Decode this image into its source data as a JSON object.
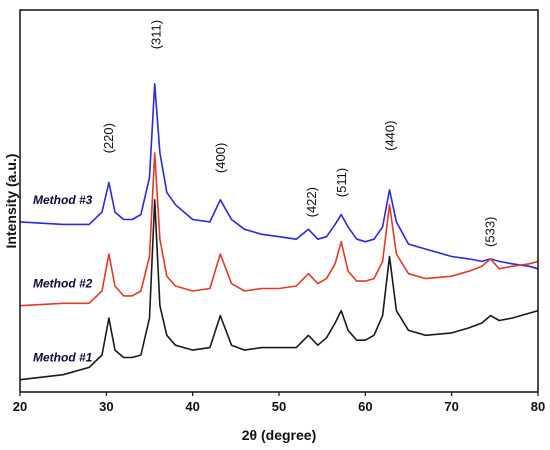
{
  "chart_data": {
    "type": "line",
    "xlabel": "2θ (degree)",
    "ylabel": "Intensity (a.u.)",
    "xlim": [
      20,
      80
    ],
    "xticks": [
      "20",
      "30",
      "40",
      "50",
      "60",
      "70",
      "80"
    ],
    "grid": false,
    "legend": "inline labels left of each trace",
    "series": [
      {
        "name": "Method #3",
        "color": "#2a2ad8",
        "x": [
          20,
          25,
          28,
          29.5,
          30.3,
          31,
          32,
          33,
          34,
          35,
          35.6,
          36.2,
          37,
          38,
          40,
          42,
          43.2,
          44.5,
          46,
          48,
          50,
          52,
          53.4,
          54.5,
          55.5,
          56.5,
          57.2,
          58,
          59,
          60,
          61,
          62,
          62.8,
          63.6,
          65,
          67,
          70,
          72,
          73.5,
          74.5,
          75.5,
          77,
          79,
          80
        ],
        "y": [
          0.44,
          0.43,
          0.43,
          0.48,
          0.6,
          0.48,
          0.45,
          0.45,
          0.47,
          0.62,
          1.0,
          0.72,
          0.56,
          0.51,
          0.45,
          0.44,
          0.53,
          0.45,
          0.41,
          0.39,
          0.38,
          0.37,
          0.41,
          0.37,
          0.38,
          0.43,
          0.47,
          0.42,
          0.37,
          0.36,
          0.37,
          0.42,
          0.57,
          0.44,
          0.35,
          0.33,
          0.3,
          0.29,
          0.28,
          0.29,
          0.28,
          0.27,
          0.26,
          0.25
        ]
      },
      {
        "name": "Method #2",
        "color": "#e03a2a",
        "x": [
          20,
          25,
          28,
          29.5,
          30.3,
          31,
          32,
          33,
          34,
          35,
          35.6,
          36.2,
          37,
          38,
          40,
          42,
          43.2,
          44.5,
          46,
          48,
          50,
          52,
          53.4,
          54.5,
          55.5,
          56.5,
          57.2,
          58,
          59,
          60,
          61,
          62,
          62.8,
          63.6,
          65,
          67,
          70,
          72,
          73.5,
          74.5,
          75.5,
          77,
          79,
          80
        ],
        "y": [
          0.1,
          0.11,
          0.11,
          0.16,
          0.31,
          0.18,
          0.14,
          0.14,
          0.16,
          0.3,
          0.72,
          0.37,
          0.22,
          0.18,
          0.16,
          0.17,
          0.31,
          0.19,
          0.16,
          0.17,
          0.17,
          0.18,
          0.23,
          0.19,
          0.21,
          0.27,
          0.36,
          0.24,
          0.2,
          0.2,
          0.21,
          0.28,
          0.51,
          0.31,
          0.23,
          0.21,
          0.22,
          0.24,
          0.26,
          0.29,
          0.25,
          0.26,
          0.27,
          0.28
        ]
      },
      {
        "name": "Method #1",
        "color": "#1a1a1a",
        "x": [
          20,
          25,
          28,
          29.5,
          30.3,
          31,
          32,
          33,
          34,
          35,
          35.6,
          36.2,
          37,
          38,
          40,
          42,
          43.2,
          44.5,
          46,
          48,
          50,
          52,
          53.4,
          54.5,
          55.5,
          56.5,
          57.2,
          58,
          59,
          60,
          61,
          62,
          62.8,
          63.6,
          65,
          67,
          70,
          72,
          73.5,
          74.5,
          75.5,
          77,
          79,
          80
        ],
        "y": [
          -0.2,
          -0.18,
          -0.15,
          -0.1,
          0.05,
          -0.08,
          -0.11,
          -0.11,
          -0.1,
          0.05,
          0.53,
          0.1,
          -0.02,
          -0.06,
          -0.08,
          -0.07,
          0.06,
          -0.06,
          -0.08,
          -0.07,
          -0.07,
          -0.07,
          -0.02,
          -0.06,
          -0.03,
          0.03,
          0.08,
          0.0,
          -0.04,
          -0.04,
          -0.02,
          0.06,
          0.3,
          0.08,
          0.0,
          -0.02,
          -0.01,
          0.01,
          0.03,
          0.06,
          0.04,
          0.05,
          0.07,
          0.08
        ]
      }
    ],
    "annotations": [
      {
        "text": "(220)",
        "x": 30.3,
        "y": 0.78
      },
      {
        "text": "(311)",
        "x": 35.8,
        "y": 1.2
      },
      {
        "text": "(400)",
        "x": 43.3,
        "y": 0.7
      },
      {
        "text": "(422)",
        "x": 53.8,
        "y": 0.52
      },
      {
        "text": "(511)",
        "x": 57.3,
        "y": 0.6
      },
      {
        "text": "(440)",
        "x": 62.9,
        "y": 0.79
      },
      {
        "text": "(533)",
        "x": 74.5,
        "y": 0.4
      }
    ]
  }
}
